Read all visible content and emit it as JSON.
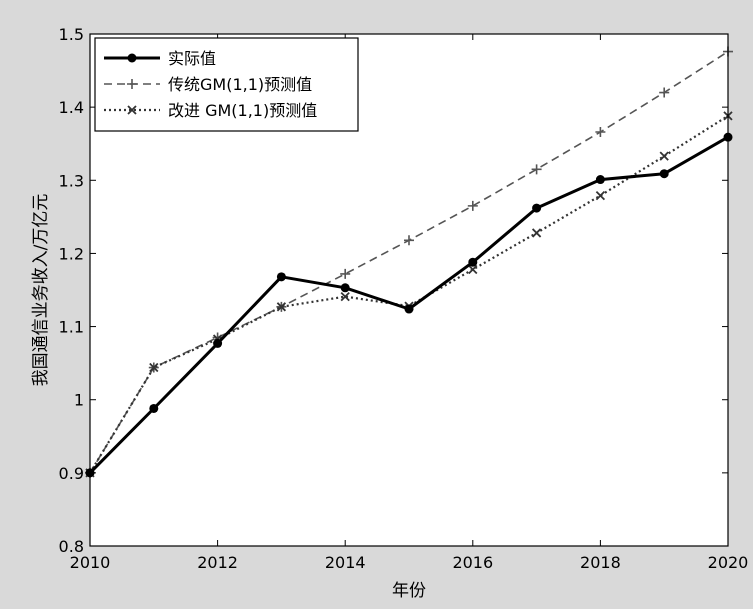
{
  "chart_data": {
    "type": "line",
    "title": "",
    "xlabel": "年份",
    "ylabel": "我国通信业务收入/万亿元",
    "xlim": [
      2010,
      2020
    ],
    "ylim": [
      0.8,
      1.5
    ],
    "x_ticks": [
      2010,
      2012,
      2014,
      2016,
      2018,
      2020
    ],
    "y_ticks": [
      0.8,
      0.9,
      1,
      1.1,
      1.2,
      1.3,
      1.4,
      1.5
    ],
    "y_tick_labels": [
      "0.8",
      "0.9",
      "1",
      "1.1",
      "1.2",
      "1.3",
      "1.4",
      "1.5"
    ],
    "grid": false,
    "legend_position": "top-left",
    "x": [
      2010,
      2011,
      2012,
      2013,
      2014,
      2015,
      2016,
      2017,
      2018,
      2019,
      2020
    ],
    "series": [
      {
        "name": "实际值",
        "style": "solid",
        "marker": "dot",
        "color": "#000000",
        "values": [
          0.9,
          0.988,
          1.077,
          1.168,
          1.153,
          1.124,
          1.188,
          1.262,
          1.301,
          1.309,
          1.359
        ]
      },
      {
        "name": "传统GM(1,1)预测值",
        "style": "dashed",
        "marker": "plus",
        "color": "#555555",
        "values": [
          0.9,
          1.044,
          1.085,
          1.127,
          1.172,
          1.218,
          1.265,
          1.315,
          1.366,
          1.42,
          1.476
        ]
      },
      {
        "name": "改进 GM(1,1)预测值",
        "style": "dotted",
        "marker": "cross",
        "color": "#333333",
        "values": [
          0.9,
          1.044,
          1.083,
          1.127,
          1.141,
          1.128,
          1.178,
          1.228,
          1.279,
          1.333,
          1.388
        ]
      }
    ]
  }
}
